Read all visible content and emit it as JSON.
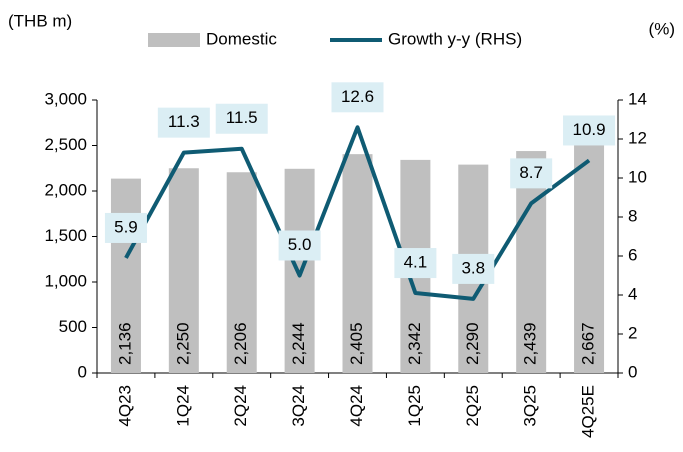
{
  "chart_data": {
    "type": "bar-line",
    "y_label": "(THB m)",
    "y2_label": "(%)",
    "categories": [
      "4Q23",
      "1Q24",
      "2Q24",
      "3Q24",
      "4Q24",
      "1Q25",
      "2Q25",
      "3Q25",
      "4Q25E"
    ],
    "series": [
      {
        "name": "Domestic",
        "type": "bar",
        "color": "#bfbfbf",
        "values": [
          2136,
          2250,
          2206,
          2244,
          2405,
          2342,
          2290,
          2439,
          2667
        ],
        "value_labels": [
          "2,136",
          "2,250",
          "2,206",
          "2,244",
          "2,405",
          "2,342",
          "2,290",
          "2,439",
          "2,667"
        ]
      },
      {
        "name": "Growth y-y (RHS)",
        "type": "line",
        "axis": "y2",
        "color": "#0f5b73",
        "values": [
          5.9,
          11.3,
          11.5,
          5.0,
          12.6,
          4.1,
          3.8,
          8.7,
          10.9
        ],
        "value_labels": [
          "5.9",
          "11.3",
          "11.5",
          "5.0",
          "12.6",
          "4.1",
          "3.8",
          "8.7",
          "10.9"
        ]
      }
    ],
    "ylim": [
      0,
      3000
    ],
    "yticks": [
      0,
      500,
      {
        "value": 1000,
        "label": "1,000"
      },
      {
        "value": 1500,
        "label": "1,500"
      },
      {
        "value": 2000,
        "label": "2,000"
      },
      {
        "value": 2500,
        "label": "2,500"
      },
      {
        "value": 3000,
        "label": "3,000"
      }
    ],
    "y2lim": [
      0,
      14
    ],
    "y2ticks": [
      0,
      2,
      4,
      6,
      8,
      10,
      12,
      14
    ]
  }
}
